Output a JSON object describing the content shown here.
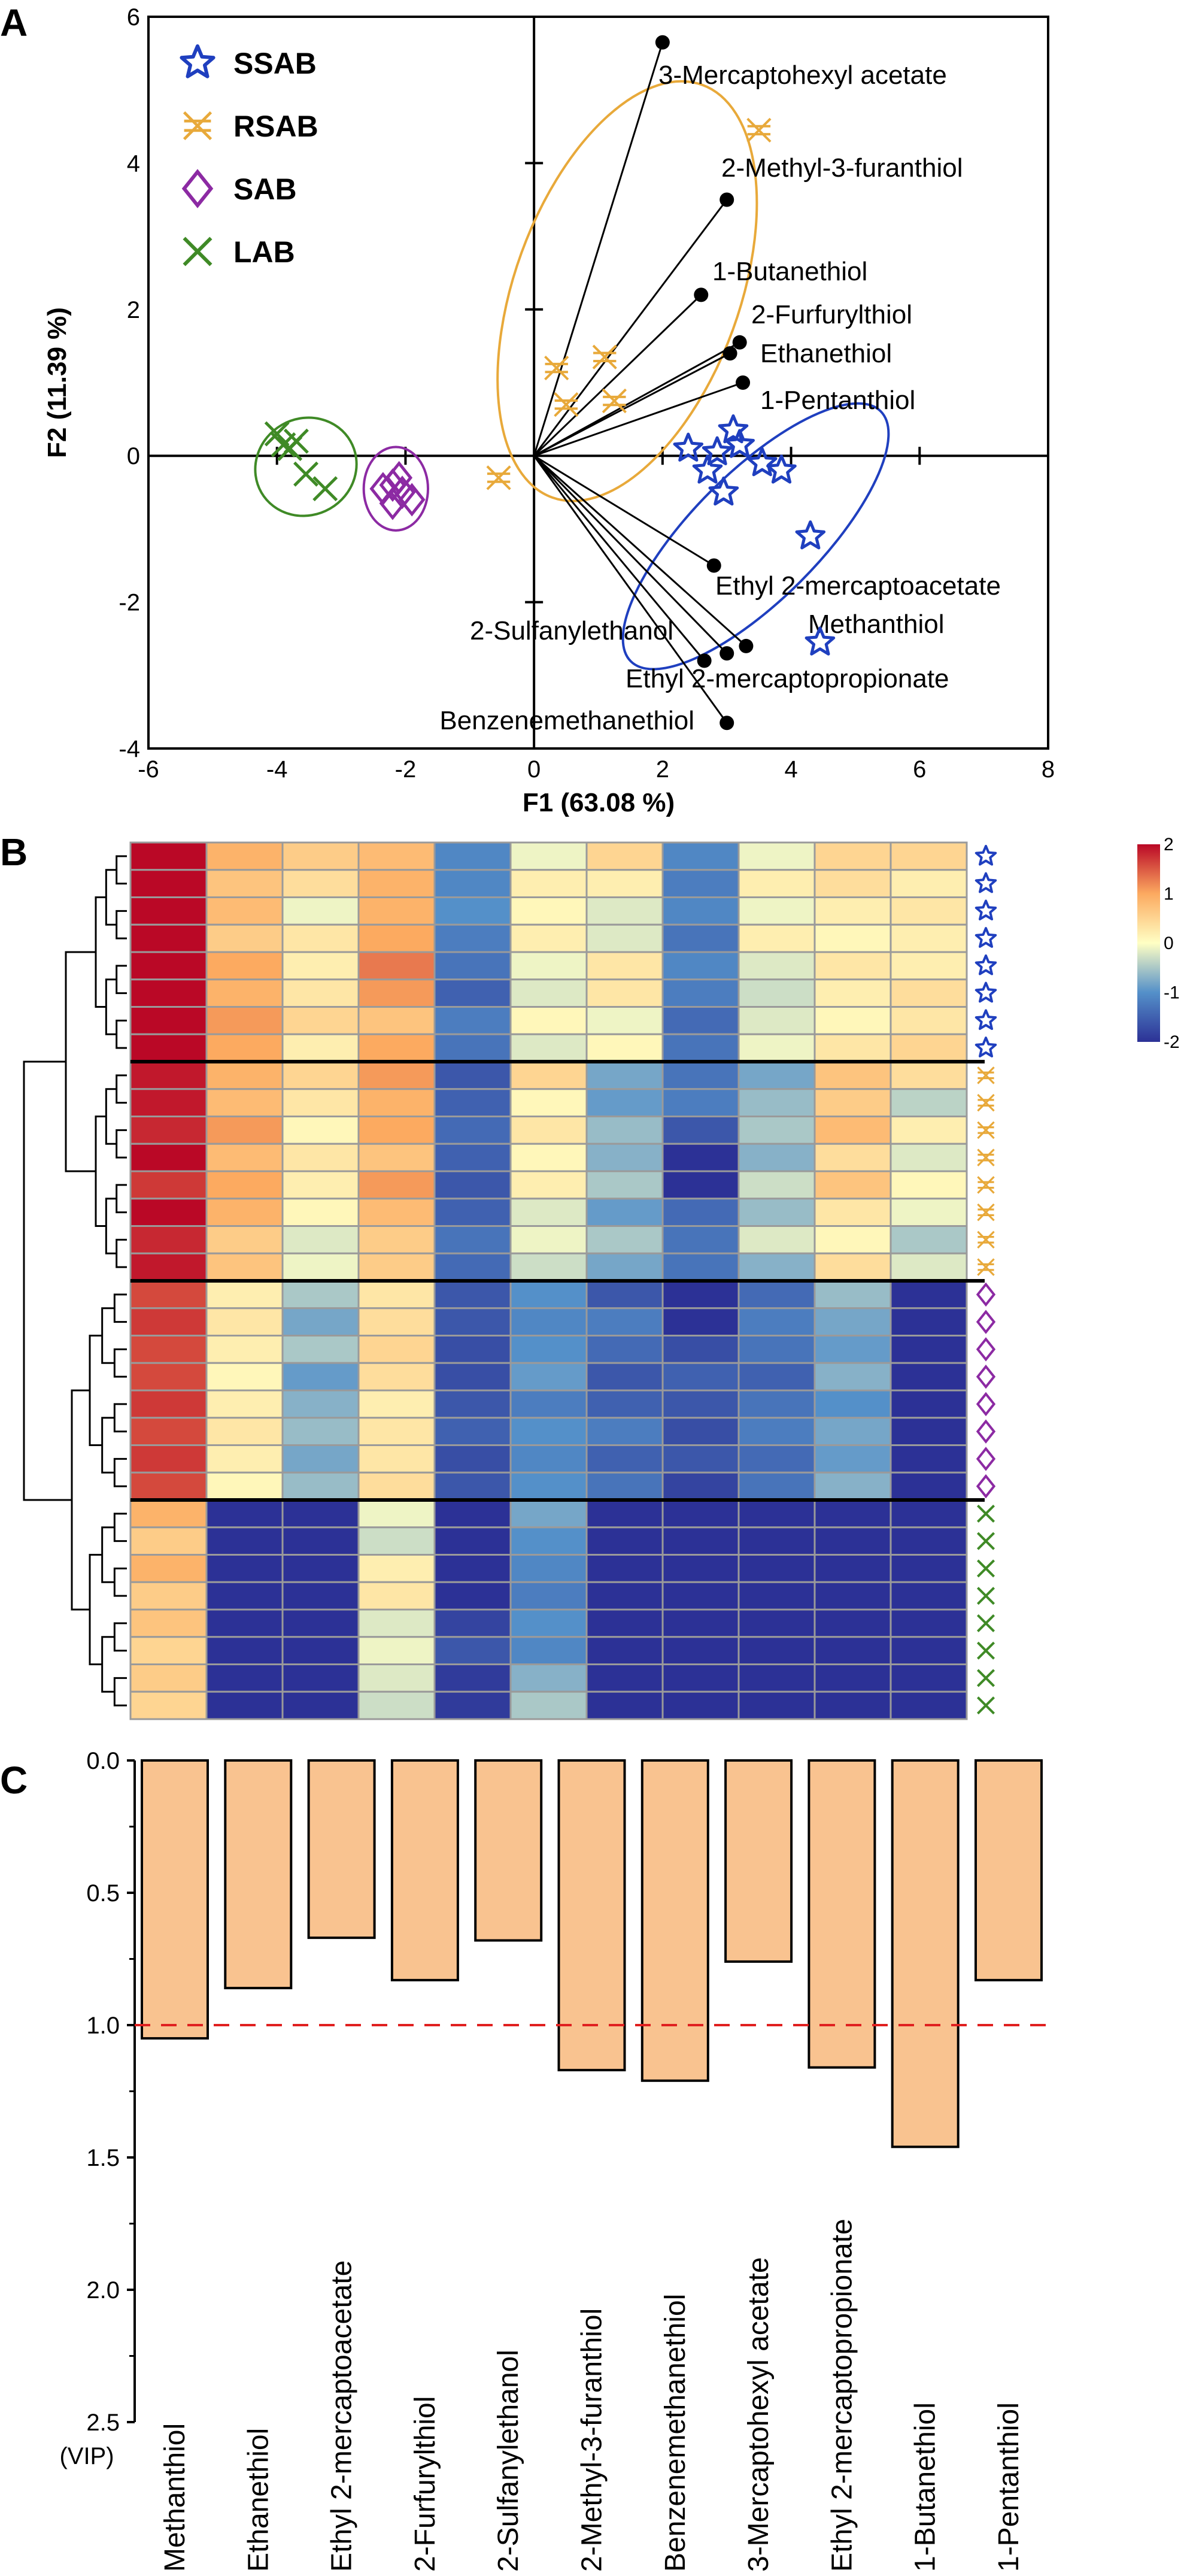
{
  "panels": {
    "a": "A",
    "b": "B",
    "c": "C"
  },
  "groups": [
    {
      "name": "SSAB",
      "color": "#1f3fbf",
      "marker": "star"
    },
    {
      "name": "RSAB",
      "color": "#e8a93a",
      "marker": "asterisk"
    },
    {
      "name": "SAB",
      "color": "#8c2aa3",
      "marker": "diamond"
    },
    {
      "name": "LAB",
      "color": "#3f8a26",
      "marker": "x"
    }
  ],
  "chart_data": [
    {
      "type": "scatter",
      "subtype": "biplot",
      "xlabel": "F1 (63.08 %)",
      "ylabel": "F2 (11.39 %)",
      "xlim": [
        -6,
        8
      ],
      "ylim": [
        -4,
        6
      ],
      "xticks": [
        -6,
        -4,
        -2,
        0,
        2,
        4,
        6,
        8
      ],
      "yticks": [
        -4,
        -2,
        0,
        2,
        4,
        6
      ],
      "series": [
        {
          "name": "SSAB",
          "points": [
            [
              2.4,
              0.1
            ],
            [
              2.7,
              -0.2
            ],
            [
              2.85,
              0.05
            ],
            [
              3.1,
              0.35
            ],
            [
              3.2,
              0.15
            ],
            [
              3.55,
              -0.1
            ],
            [
              3.85,
              -0.2
            ],
            [
              4.3,
              -1.1
            ],
            [
              4.45,
              -2.55
            ],
            [
              2.95,
              -0.5
            ]
          ]
        },
        {
          "name": "RSAB",
          "points": [
            [
              3.5,
              4.45
            ],
            [
              0.35,
              1.2
            ],
            [
              0.5,
              0.7
            ],
            [
              1.1,
              1.35
            ],
            [
              1.25,
              0.75
            ],
            [
              -0.55,
              -0.3
            ]
          ]
        },
        {
          "name": "SAB",
          "points": [
            [
              -2.2,
              -0.4
            ],
            [
              -2.05,
              -0.5
            ],
            [
              -2.2,
              -0.65
            ],
            [
              -1.9,
              -0.6
            ],
            [
              -2.1,
              -0.3
            ],
            [
              -2.35,
              -0.45
            ]
          ]
        },
        {
          "name": "LAB",
          "points": [
            [
              -4.0,
              0.3
            ],
            [
              -3.8,
              0.1
            ],
            [
              -3.55,
              -0.25
            ],
            [
              -3.25,
              -0.45
            ],
            [
              -3.9,
              0.15
            ],
            [
              -3.7,
              0.2
            ]
          ]
        }
      ],
      "loadings": [
        {
          "name": "3-Mercaptohexyl acetate",
          "x": 2.0,
          "y": 5.65
        },
        {
          "name": "2-Methyl-3-furanthiol",
          "x": 3.0,
          "y": 3.5
        },
        {
          "name": "1-Butanethiol",
          "x": 2.6,
          "y": 2.2
        },
        {
          "name": "2-Furfurylthiol",
          "x": 3.2,
          "y": 1.55
        },
        {
          "name": "Ethanethiol",
          "x": 3.05,
          "y": 1.4
        },
        {
          "name": "1-Pentanthiol",
          "x": 3.25,
          "y": 1.0
        },
        {
          "name": "Ethyl 2-mercaptoacetate",
          "x": 2.8,
          "y": -1.5
        },
        {
          "name": "Methanthiol",
          "x": 3.3,
          "y": -2.6
        },
        {
          "name": "2-Sulfanylethanol",
          "x": 2.65,
          "y": -2.8
        },
        {
          "name": "Ethyl 2-mercaptopropionate",
          "x": 3.0,
          "y": -2.7
        },
        {
          "name": "Benzenemethanethiol",
          "x": 3.0,
          "y": -3.65
        }
      ],
      "ellipses": [
        {
          "group": "RSAB",
          "cx": 1.45,
          "cy": 2.25,
          "rx": 1.75,
          "ry": 5.0,
          "angle": 20
        },
        {
          "group": "SSAB",
          "cx": 3.45,
          "cy": -1.1,
          "rx": 2.75,
          "ry": 1.45,
          "angle": -45
        },
        {
          "group": "SAB",
          "cx": -2.15,
          "cy": -0.45,
          "rx": 0.5,
          "ry": 0.95,
          "angle": 0
        },
        {
          "group": "LAB",
          "cx": -3.55,
          "cy": -0.15,
          "rx": 0.8,
          "ry": 1.1,
          "angle": -30
        }
      ]
    },
    {
      "type": "heatmap",
      "colorbar": {
        "min": -2,
        "max": 2,
        "ticks": [
          2,
          1,
          0,
          -1,
          -2
        ]
      },
      "row_groups": [
        "SSAB",
        "SSAB",
        "SSAB",
        "SSAB",
        "SSAB",
        "SSAB",
        "SSAB",
        "SSAB",
        "RSAB",
        "RSAB",
        "RSAB",
        "RSAB",
        "RSAB",
        "RSAB",
        "RSAB",
        "RSAB",
        "SAB",
        "SAB",
        "SAB",
        "SAB",
        "SAB",
        "SAB",
        "SAB",
        "SAB",
        "LAB",
        "LAB",
        "LAB",
        "LAB",
        "LAB",
        "LAB",
        "LAB",
        "LAB"
      ],
      "values": [
        [
          2.4,
          0.9,
          0.6,
          0.8,
          -1.1,
          -0.1,
          0.5,
          -1.1,
          -0.1,
          0.5,
          0.5
        ],
        [
          2.4,
          0.7,
          0.4,
          0.9,
          -1.1,
          0.2,
          0.2,
          -1.2,
          0.2,
          0.4,
          0.2
        ],
        [
          2.4,
          0.8,
          -0.1,
          0.9,
          -1.0,
          0.1,
          -0.2,
          -1.1,
          -0.1,
          0.2,
          0.3
        ],
        [
          2.4,
          0.6,
          0.3,
          1.0,
          -1.2,
          0.2,
          -0.2,
          -1.3,
          0.2,
          0.1,
          0.2
        ],
        [
          2.4,
          1.0,
          0.2,
          1.3,
          -1.3,
          -0.1,
          0.3,
          -1.1,
          -0.2,
          0.3,
          0.2
        ],
        [
          2.4,
          0.9,
          0.3,
          1.1,
          -1.5,
          -0.2,
          0.3,
          -1.2,
          -0.3,
          0.2,
          0.4
        ],
        [
          2.4,
          1.1,
          0.5,
          0.7,
          -1.2,
          0.1,
          -0.1,
          -1.4,
          -0.2,
          0.1,
          0.3
        ],
        [
          2.4,
          1.0,
          0.2,
          1.0,
          -1.3,
          -0.2,
          0.1,
          -1.3,
          -0.1,
          0.3,
          0.5
        ],
        [
          1.9,
          0.9,
          0.5,
          1.1,
          -1.6,
          0.5,
          -0.8,
          -1.3,
          -0.8,
          0.7,
          0.4
        ],
        [
          1.9,
          0.8,
          0.3,
          0.9,
          -1.5,
          0.1,
          -0.9,
          -1.2,
          -0.6,
          0.6,
          -0.4
        ],
        [
          1.8,
          1.1,
          0.1,
          1.0,
          -1.4,
          0.3,
          -0.6,
          -1.6,
          -0.5,
          0.8,
          0.2
        ],
        [
          2.0,
          0.8,
          0.3,
          0.7,
          -1.5,
          0.1,
          -0.7,
          -2.0,
          -0.7,
          0.4,
          -0.2
        ],
        [
          1.7,
          1.0,
          0.2,
          1.1,
          -1.6,
          0.2,
          -0.5,
          -2.0,
          -0.3,
          0.7,
          0.1
        ],
        [
          2.0,
          0.9,
          0.1,
          0.8,
          -1.5,
          -0.2,
          -0.9,
          -1.4,
          -0.6,
          0.3,
          -0.1
        ],
        [
          1.8,
          0.6,
          -0.2,
          0.6,
          -1.3,
          -0.1,
          -0.5,
          -1.3,
          -0.2,
          0.1,
          -0.5
        ],
        [
          1.9,
          0.7,
          -0.1,
          0.6,
          -1.4,
          -0.3,
          -0.8,
          -1.3,
          -0.7,
          0.4,
          -0.2
        ],
        [
          1.6,
          0.2,
          -0.5,
          0.3,
          -1.6,
          -1.0,
          -1.6,
          -2.0,
          -1.4,
          -0.6,
          -2.0
        ],
        [
          1.7,
          0.3,
          -0.8,
          0.4,
          -1.6,
          -1.1,
          -1.2,
          -2.0,
          -1.2,
          -0.8,
          -2.0
        ],
        [
          1.6,
          0.2,
          -0.5,
          0.5,
          -1.7,
          -1.0,
          -1.4,
          -1.7,
          -1.3,
          -0.9,
          -2.0
        ],
        [
          1.6,
          0.1,
          -0.9,
          0.4,
          -1.7,
          -0.9,
          -1.6,
          -1.5,
          -1.5,
          -0.7,
          -2.0
        ],
        [
          1.7,
          0.2,
          -0.7,
          0.2,
          -1.6,
          -1.2,
          -1.5,
          -1.6,
          -1.3,
          -1.0,
          -2.0
        ],
        [
          1.6,
          0.3,
          -0.6,
          0.3,
          -1.5,
          -1.0,
          -1.2,
          -1.7,
          -1.2,
          -0.8,
          -2.0
        ],
        [
          1.7,
          0.2,
          -0.8,
          0.3,
          -1.7,
          -1.1,
          -1.5,
          -1.6,
          -1.4,
          -0.9,
          -2.0
        ],
        [
          1.6,
          0.1,
          -0.6,
          0.4,
          -1.6,
          -1.0,
          -1.3,
          -1.8,
          -1.3,
          -0.7,
          -2.0
        ],
        [
          0.9,
          -2.0,
          -2.0,
          -0.1,
          -2.0,
          -0.8,
          -2.0,
          -2.0,
          -2.0,
          -2.0,
          -2.0
        ],
        [
          0.6,
          -2.0,
          -2.0,
          -0.3,
          -2.0,
          -1.0,
          -2.0,
          -2.0,
          -2.0,
          -2.0,
          -2.0
        ],
        [
          0.9,
          -2.0,
          -2.0,
          0.2,
          -2.0,
          -1.1,
          -2.0,
          -2.0,
          -2.0,
          -2.0,
          -2.0
        ],
        [
          0.6,
          -2.0,
          -2.0,
          0.3,
          -2.0,
          -1.2,
          -2.0,
          -2.0,
          -2.0,
          -2.0,
          -2.0
        ],
        [
          0.7,
          -2.0,
          -2.0,
          -0.2,
          -1.8,
          -1.0,
          -2.0,
          -2.0,
          -2.0,
          -2.0,
          -2.0
        ],
        [
          0.5,
          -2.0,
          -2.0,
          -0.1,
          -1.6,
          -1.1,
          -2.0,
          -2.0,
          -2.0,
          -2.0,
          -2.0
        ],
        [
          0.6,
          -2.0,
          -2.0,
          -0.2,
          -1.9,
          -0.7,
          -2.0,
          -2.0,
          -2.0,
          -2.0,
          -2.0
        ],
        [
          0.5,
          -2.0,
          -2.0,
          -0.3,
          -1.9,
          -0.5,
          -2.0,
          -2.0,
          -2.0,
          -2.0,
          -2.0
        ]
      ]
    },
    {
      "type": "bar",
      "ylabel": "(VIP)",
      "ylim": [
        0,
        2.5
      ],
      "yticks": [
        "0.0",
        "0.5",
        "1.0",
        "1.5",
        "2.0",
        "2.5"
      ],
      "threshold": 1.0,
      "categories": [
        "Methanthiol",
        "Ethanethiol",
        "Ethyl 2-mercaptoacetate",
        "2-Furfurylthiol",
        "2-Sulfanylethanol",
        "2-Methyl-3-furanthiol",
        "Benzenemethanethiol",
        "3-Mercaptohexyl acetate",
        "Ethyl 2-mercaptopropionate",
        "1-Butanethiol",
        "1-Pentanthiol"
      ],
      "values": [
        1.05,
        0.86,
        0.67,
        0.83,
        0.68,
        1.17,
        1.21,
        0.76,
        1.16,
        1.46,
        0.83
      ]
    }
  ]
}
